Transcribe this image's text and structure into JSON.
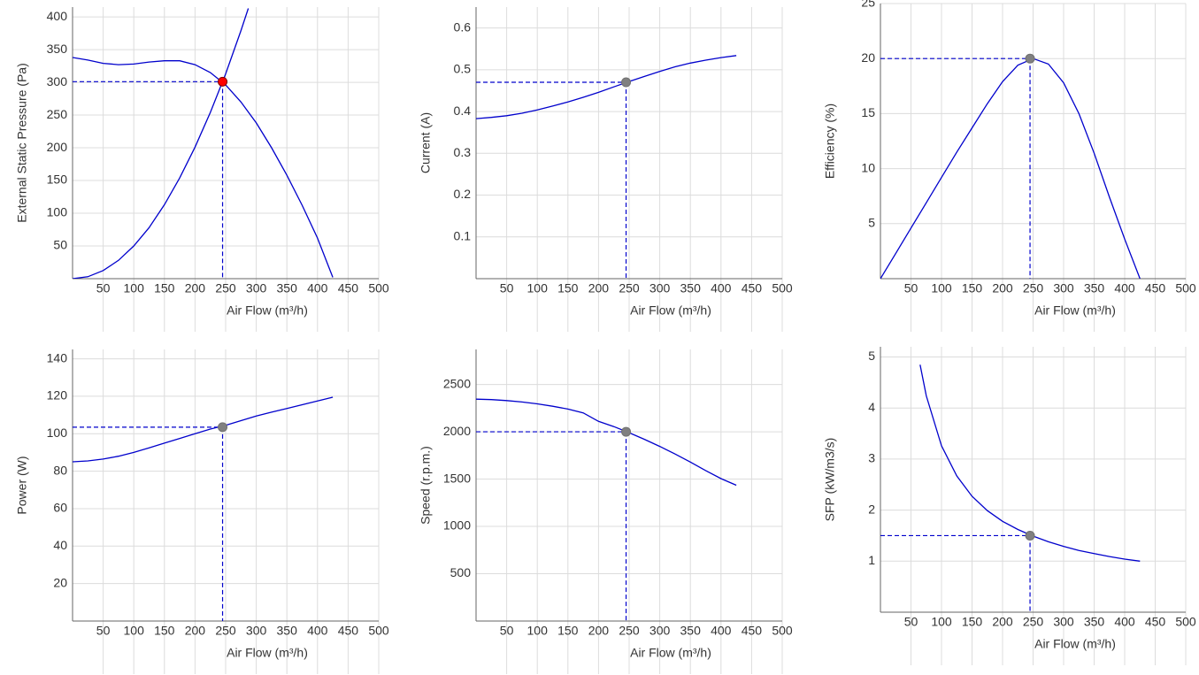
{
  "chart_data": [
    {
      "type": "line",
      "x_label": "Air Flow (m³/h)",
      "y_label": "External Static Pressure (Pa)",
      "xlim": [
        0,
        500
      ],
      "xticks": [
        50,
        100,
        150,
        200,
        250,
        300,
        350,
        400,
        450,
        500
      ],
      "ylim": [
        0,
        415
      ],
      "yticks": [
        50,
        100,
        150,
        200,
        250,
        300,
        350,
        400
      ],
      "grid": true,
      "series": [
        {
          "color": "#0000cc",
          "x": [
            0,
            25,
            50,
            75,
            100,
            125,
            150,
            175,
            200,
            225,
            250,
            275,
            300,
            325,
            350,
            375,
            400,
            425
          ],
          "values": [
            338,
            334,
            329,
            327,
            328,
            331,
            333,
            333,
            327,
            315,
            296,
            270,
            238,
            200,
            158,
            112,
            62,
            2
          ]
        },
        {
          "color": "#0000cc",
          "x": [
            0,
            25,
            50,
            75,
            100,
            125,
            150,
            175,
            200,
            225,
            250,
            275,
            287
          ],
          "values": [
            0,
            3,
            12.5,
            28,
            50,
            78,
            113,
            154,
            201,
            254,
            313,
            379,
            413
          ]
        }
      ],
      "operating_point": {
        "x": 245,
        "y": 301,
        "color": "#ff0000"
      }
    },
    {
      "type": "line",
      "x_label": "Air Flow (m³/h)",
      "y_label": "Current (A)",
      "xlim": [
        0,
        500
      ],
      "xticks": [
        50,
        100,
        150,
        200,
        250,
        300,
        350,
        400,
        450,
        500
      ],
      "ylim": [
        0,
        0.65
      ],
      "yticks": [
        0.1,
        0.2,
        0.3,
        0.4,
        0.5,
        0.6
      ],
      "grid": true,
      "series": [
        {
          "color": "#0000cc",
          "x": [
            0,
            25,
            50,
            75,
            100,
            125,
            150,
            175,
            200,
            225,
            250,
            275,
            300,
            325,
            350,
            375,
            400,
            425
          ],
          "values": [
            0.383,
            0.386,
            0.39,
            0.396,
            0.404,
            0.413,
            0.423,
            0.434,
            0.446,
            0.459,
            0.472,
            0.484,
            0.496,
            0.507,
            0.516,
            0.523,
            0.529,
            0.534
          ]
        }
      ],
      "operating_point": {
        "x": 245,
        "y": 0.47,
        "color": "#808080"
      }
    },
    {
      "type": "line",
      "x_label": "Air Flow (m³/h)",
      "y_label": "Efficiency (%)",
      "xlim": [
        0,
        500
      ],
      "xticks": [
        50,
        100,
        150,
        200,
        250,
        300,
        350,
        400,
        450,
        500
      ],
      "ylim": [
        0,
        25
      ],
      "yticks": [
        5,
        10,
        15,
        20,
        25
      ],
      "grid": true,
      "series": [
        {
          "color": "#0000cc",
          "x": [
            0,
            25,
            50,
            75,
            100,
            125,
            150,
            175,
            200,
            225,
            250,
            275,
            300,
            325,
            350,
            375,
            400,
            425
          ],
          "values": [
            0,
            2.3,
            4.6,
            6.9,
            9.2,
            11.5,
            13.7,
            15.9,
            17.9,
            19.4,
            20,
            19.5,
            17.8,
            15,
            11.4,
            7.4,
            3.6,
            0
          ]
        }
      ],
      "operating_point": {
        "x": 245,
        "y": 20,
        "color": "#808080"
      }
    },
    {
      "type": "line",
      "x_label": "Air Flow (m³/h)",
      "y_label": "Power (W)",
      "xlim": [
        0,
        500
      ],
      "xticks": [
        50,
        100,
        150,
        200,
        250,
        300,
        350,
        400,
        450,
        500
      ],
      "ylim": [
        0,
        145
      ],
      "yticks": [
        20,
        40,
        60,
        80,
        100,
        120,
        140
      ],
      "grid": true,
      "series": [
        {
          "color": "#0000cc",
          "x": [
            0,
            25,
            50,
            75,
            100,
            125,
            150,
            175,
            200,
            225,
            250,
            275,
            300,
            325,
            350,
            375,
            400,
            425
          ],
          "values": [
            85,
            85.5,
            86.5,
            88,
            90,
            92.5,
            95,
            97.5,
            100,
            102.5,
            104.5,
            107,
            109.5,
            111.5,
            113.5,
            115.5,
            117.5,
            119.5
          ]
        }
      ],
      "operating_point": {
        "x": 245,
        "y": 103.5,
        "color": "#808080"
      }
    },
    {
      "type": "line",
      "x_label": "Air Flow (m³/h)",
      "y_label": "Speed (r.p.m.)",
      "xlim": [
        0,
        500
      ],
      "xticks": [
        50,
        100,
        150,
        200,
        250,
        300,
        350,
        400,
        450,
        500
      ],
      "ylim": [
        0,
        2870
      ],
      "yticks": [
        500,
        1000,
        1500,
        2000,
        2500
      ],
      "grid": true,
      "series": [
        {
          "color": "#0000cc",
          "x": [
            0,
            25,
            50,
            75,
            100,
            125,
            150,
            175,
            200,
            225,
            250,
            275,
            300,
            325,
            350,
            375,
            400,
            425
          ],
          "values": [
            2345,
            2340,
            2330,
            2315,
            2295,
            2270,
            2240,
            2200,
            2110,
            2055,
            1990,
            1920,
            1845,
            1765,
            1680,
            1590,
            1505,
            1435
          ]
        }
      ],
      "operating_point": {
        "x": 245,
        "y": 2000,
        "color": "#808080"
      }
    },
    {
      "type": "line",
      "x_label": "Air Flow (m³/h)",
      "y_label": "SFP (kW/m3/s)",
      "xlim": [
        0,
        500
      ],
      "xticks": [
        50,
        100,
        150,
        200,
        250,
        300,
        350,
        400,
        450,
        500
      ],
      "ylim": [
        0,
        5.2
      ],
      "yticks": [
        1,
        2,
        3,
        4,
        5
      ],
      "grid": true,
      "series": [
        {
          "color": "#0000cc",
          "x": [
            65,
            75,
            100,
            125,
            150,
            175,
            200,
            225,
            250,
            275,
            300,
            325,
            350,
            375,
            400,
            425
          ],
          "values": [
            4.85,
            4.24,
            3.26,
            2.67,
            2.27,
            1.99,
            1.78,
            1.62,
            1.49,
            1.38,
            1.29,
            1.21,
            1.15,
            1.09,
            1.04,
            1.0
          ]
        }
      ],
      "operating_point": {
        "x": 245,
        "y": 1.5,
        "color": "#808080"
      }
    }
  ]
}
